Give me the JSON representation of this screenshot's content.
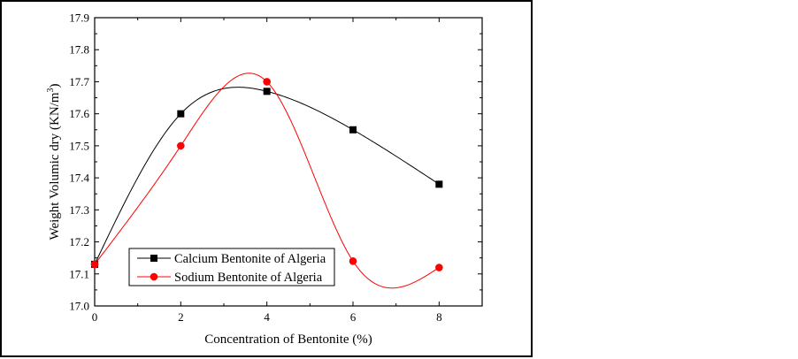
{
  "chart_data": {
    "type": "line",
    "title": "",
    "xlabel": "Concentration of Bentonite  (%)",
    "ylabel": "Weight Volumic dry (KN/m",
    "ylabel_superscript": "3",
    "ylabel_suffix": ")",
    "x": [
      0,
      2,
      4,
      6,
      8
    ],
    "xlim": [
      0,
      9
    ],
    "ylim": [
      17.0,
      17.9
    ],
    "x_ticks": [
      0,
      2,
      4,
      6,
      8
    ],
    "x_tick_labels": [
      "0",
      "2",
      "4",
      "6",
      "8"
    ],
    "y_ticks": [
      17.0,
      17.1,
      17.2,
      17.3,
      17.4,
      17.5,
      17.6,
      17.7,
      17.8,
      17.9
    ],
    "y_tick_labels": [
      "17.0",
      "17.1",
      "17.2",
      "17.3",
      "17.4",
      "17.5",
      "17.6",
      "17.7",
      "17.8",
      "17.9"
    ],
    "grid": false,
    "legend_position": "bottom-left",
    "smoothed": true,
    "series": [
      {
        "name": "Calcium Bentonite of Algeria",
        "values": [
          17.13,
          17.6,
          17.67,
          17.55,
          17.38
        ],
        "color": "#000000",
        "marker": "square"
      },
      {
        "name": "Sodium Bentonite of Algeria",
        "values": [
          17.13,
          17.5,
          17.7,
          17.14,
          17.12
        ],
        "color": "#ff0000",
        "marker": "circle"
      }
    ]
  }
}
